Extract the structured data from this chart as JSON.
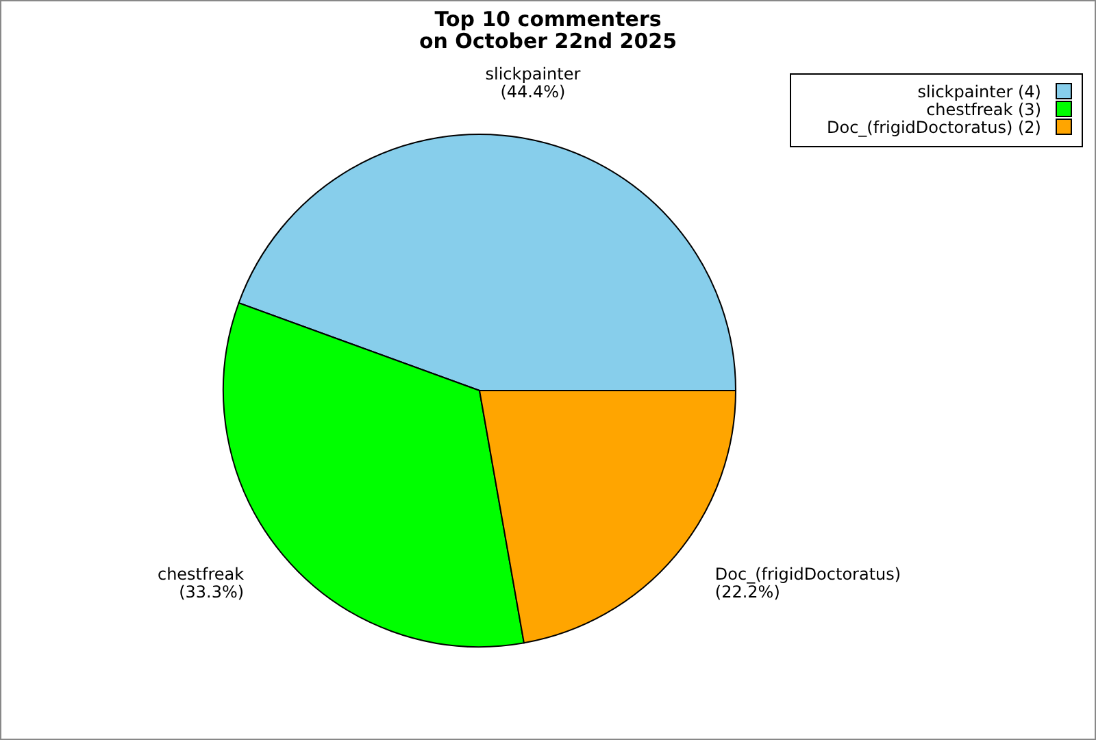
{
  "chart_data": {
    "type": "pie",
    "title": "Top 10 commenters\non October 22nd 2025",
    "categories": [
      "slickpainter (4)",
      "chestfreak (3)",
      "Doc_(frigidDoctoratus) (2)"
    ],
    "values": [
      44.4,
      33.3,
      22.2
    ],
    "colors": [
      "#87ceeb",
      "#00ff00",
      "#ffa500"
    ],
    "value_labels": [
      "slickpainter\n(44.4%)",
      "chestfreak\n(33.3%)",
      "Doc_(frigidDoctoratus)\n(22.2%)"
    ],
    "legend": "top right"
  }
}
